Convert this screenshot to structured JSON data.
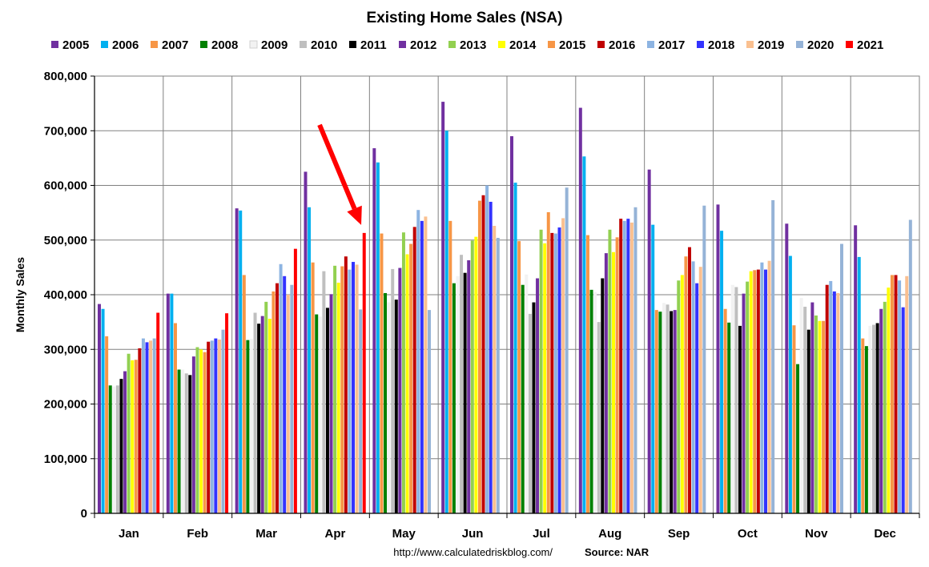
{
  "chart_data": {
    "type": "bar",
    "title": "Existing Home Sales (NSA)",
    "xlabel": "",
    "ylabel": "Monthly Sales",
    "ylim": [
      0,
      800000
    ],
    "yticks": [
      0,
      100000,
      200000,
      300000,
      400000,
      500000,
      600000,
      700000,
      800000
    ],
    "ytick_labels": [
      "0",
      "100,000",
      "200,000",
      "300,000",
      "400,000",
      "500,000",
      "600,000",
      "700,000",
      "800,000"
    ],
    "grid": true,
    "legend_position": "top",
    "categories": [
      "Jan",
      "Feb",
      "Mar",
      "Apr",
      "May",
      "Jun",
      "Jul",
      "Aug",
      "Sep",
      "Oct",
      "Nov",
      "Dec"
    ],
    "series": [
      {
        "name": "2005",
        "color": "#7030A0",
        "values": [
          383000,
          402000,
          558000,
          625000,
          668000,
          753000,
          690000,
          742000,
          629000,
          565000,
          530000,
          527000
        ]
      },
      {
        "name": "2006",
        "color": "#00B0F0",
        "values": [
          374000,
          402000,
          554000,
          560000,
          642000,
          700000,
          605000,
          653000,
          528000,
          517000,
          471000,
          469000
        ]
      },
      {
        "name": "2007",
        "color": "#F79646",
        "values": [
          324000,
          348000,
          436000,
          459000,
          512000,
          535000,
          498000,
          509000,
          372000,
          374000,
          344000,
          320000
        ]
      },
      {
        "name": "2008",
        "color": "#008000",
        "values": [
          234000,
          263000,
          317000,
          364000,
          403000,
          421000,
          418000,
          409000,
          369000,
          349000,
          273000,
          306000
        ]
      },
      {
        "name": "2009",
        "color": "#F2F2F2",
        "values": [
          232000,
          263000,
          319000,
          360000,
          386000,
          434000,
          437000,
          405000,
          385000,
          418000,
          394000,
          343000
        ]
      },
      {
        "name": "2010",
        "color": "#BFBFBF",
        "values": [
          234000,
          256000,
          367000,
          443000,
          447000,
          473000,
          365000,
          350000,
          382000,
          414000,
          378000,
          345000
        ]
      },
      {
        "name": "2011",
        "color": "#000000",
        "values": [
          246000,
          253000,
          347000,
          376000,
          391000,
          440000,
          386000,
          430000,
          370000,
          343000,
          336000,
          348000
        ]
      },
      {
        "name": "2012",
        "color": "#7030A0",
        "values": [
          260000,
          287000,
          361000,
          401000,
          449000,
          463000,
          430000,
          476000,
          372000,
          402000,
          386000,
          374000
        ]
      },
      {
        "name": "2013",
        "color": "#92D050",
        "values": [
          292000,
          304000,
          387000,
          453000,
          514000,
          499000,
          519000,
          519000,
          426000,
          424000,
          362000,
          387000
        ]
      },
      {
        "name": "2014",
        "color": "#FFFF00",
        "values": [
          280000,
          300000,
          356000,
          422000,
          474000,
          506000,
          494000,
          478000,
          436000,
          443000,
          352000,
          413000
        ]
      },
      {
        "name": "2015",
        "color": "#F79646",
        "values": [
          281000,
          295000,
          406000,
          452000,
          493000,
          572000,
          551000,
          505000,
          470000,
          445000,
          352000,
          436000
        ]
      },
      {
        "name": "2016",
        "color": "#C00000",
        "values": [
          302000,
          314000,
          421000,
          470000,
          524000,
          582000,
          513000,
          539000,
          487000,
          446000,
          418000,
          436000
        ]
      },
      {
        "name": "2017",
        "color": "#8DB4E2",
        "values": [
          320000,
          316000,
          456000,
          446000,
          555000,
          600000,
          512000,
          535000,
          461000,
          459000,
          425000,
          426000
        ]
      },
      {
        "name": "2018",
        "color": "#3333FF",
        "values": [
          313000,
          320000,
          434000,
          460000,
          535000,
          570000,
          523000,
          539000,
          421000,
          446000,
          406000,
          377000
        ]
      },
      {
        "name": "2019",
        "color": "#FAC090",
        "values": [
          316000,
          318000,
          400000,
          455000,
          543000,
          526000,
          540000,
          532000,
          451000,
          462000,
          403000,
          434000
        ]
      },
      {
        "name": "2020",
        "color": "#95B3D7",
        "values": [
          320000,
          336000,
          418000,
          373000,
          372000,
          504000,
          596000,
          560000,
          563000,
          573000,
          493000,
          537000
        ]
      },
      {
        "name": "2021",
        "color": "#FF0000",
        "values": [
          367000,
          366000,
          484000,
          513000,
          null,
          null,
          null,
          null,
          null,
          null,
          null,
          null
        ]
      }
    ],
    "annotations": [
      {
        "type": "arrow",
        "color": "#FF0000",
        "points_to": {
          "category": "Apr",
          "series": "2021",
          "value": 513000
        }
      }
    ]
  },
  "footer": {
    "url": "http://www.calculatedriskblog.com/",
    "source": "Source: NAR"
  }
}
